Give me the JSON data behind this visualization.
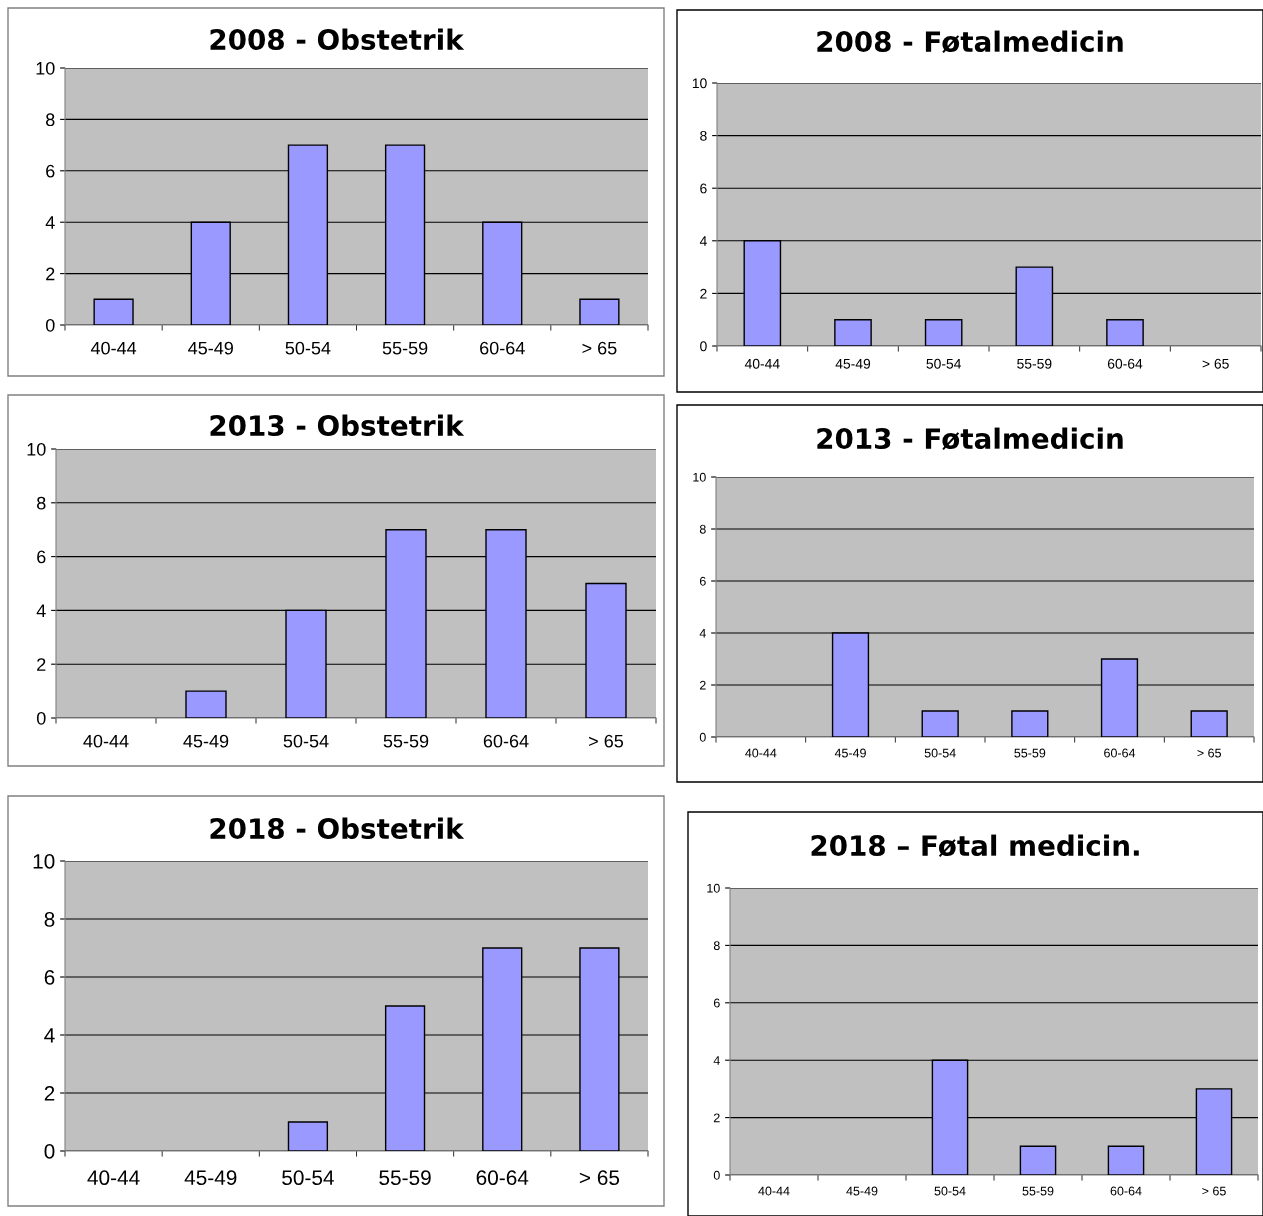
{
  "chart_data": [
    {
      "type": "bar",
      "title": "2008 - Obstetrik",
      "categories": [
        "40-44",
        "45-49",
        "50-54",
        "55-59",
        "60-64",
        "> 65"
      ],
      "values": [
        1,
        4,
        7,
        7,
        4,
        1
      ],
      "color": "#9999ff",
      "ylim": [
        0,
        10
      ],
      "yticks": [
        0,
        2,
        4,
        6,
        8,
        10
      ],
      "grid": "y"
    },
    {
      "type": "bar",
      "title": "2008 - Føtalmedicin",
      "categories": [
        "40-44",
        "45-49",
        "50-54",
        "55-59",
        "60-64",
        "> 65"
      ],
      "values": [
        4,
        1,
        1,
        3,
        1,
        0
      ],
      "color": "#9999ff",
      "ylim": [
        0,
        10
      ],
      "yticks": [
        0,
        2,
        4,
        6,
        8,
        10
      ],
      "grid": "y"
    },
    {
      "type": "bar",
      "title": "2013 - Obstetrik",
      "categories": [
        "40-44",
        "45-49",
        "50-54",
        "55-59",
        "60-64",
        "> 65"
      ],
      "values": [
        0,
        1,
        4,
        7,
        7,
        5
      ],
      "color": "#9999ff",
      "ylim": [
        0,
        10
      ],
      "yticks": [
        0,
        2,
        4,
        6,
        8,
        10
      ],
      "grid": "y"
    },
    {
      "type": "bar",
      "title": "2013 - Føtalmedicin",
      "categories": [
        "40-44",
        "45-49",
        "50-54",
        "55-59",
        "60-64",
        "> 65"
      ],
      "values": [
        0,
        4,
        1,
        1,
        3,
        1
      ],
      "color": "#9999ff",
      "ylim": [
        0,
        10
      ],
      "yticks": [
        0,
        2,
        4,
        6,
        8,
        10
      ],
      "grid": "y"
    },
    {
      "type": "bar",
      "title": "2018 - Obstetrik",
      "categories": [
        "40-44",
        "45-49",
        "50-54",
        "55-59",
        "60-64",
        "> 65"
      ],
      "values": [
        0,
        0,
        1,
        5,
        7,
        7
      ],
      "color": "#9999ff",
      "ylim": [
        0,
        10
      ],
      "yticks": [
        0,
        2,
        4,
        6,
        8,
        10
      ],
      "grid": "y"
    },
    {
      "type": "bar",
      "title": "2018 – Føtal medicin.",
      "categories": [
        "40-44",
        "45-49",
        "50-54",
        "55-59",
        "60-64",
        "> 65"
      ],
      "values": [
        0,
        0,
        4,
        1,
        1,
        3
      ],
      "color": "#9999ff",
      "ylim": [
        0,
        10
      ],
      "yticks": [
        0,
        2,
        4,
        6,
        8,
        10
      ],
      "grid": "y"
    }
  ]
}
